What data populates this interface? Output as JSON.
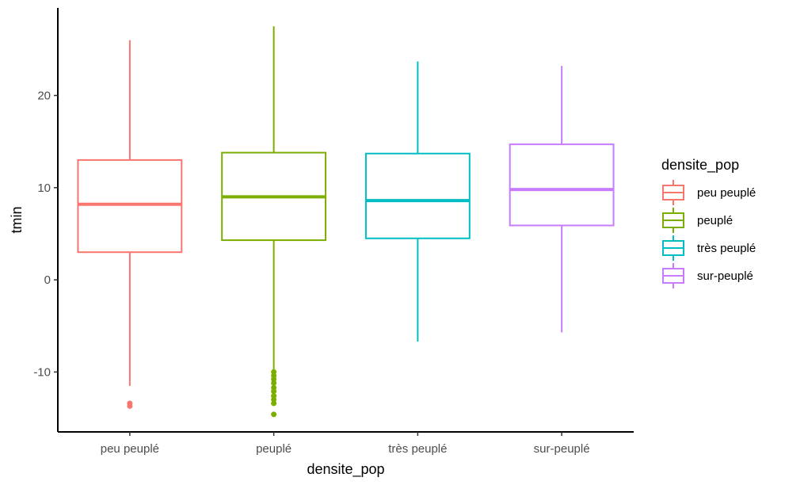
{
  "chart_data": {
    "type": "boxplot",
    "xlabel": "densite_pop",
    "ylabel": "tmin",
    "ylim": [
      -16.5,
      29.5
    ],
    "yticks": [
      -10,
      0,
      10,
      20
    ],
    "grid": false,
    "legend": {
      "title": "densite_pop",
      "position": "right"
    },
    "categories": [
      "peu peuplé",
      "peuplé",
      "très peuplé",
      "sur-peuplé"
    ],
    "series": [
      {
        "category": "peu peuplé",
        "color": "#F8766D",
        "whisker_low": -11.5,
        "q1": 3.0,
        "median": 8.2,
        "q3": 13.0,
        "whisker_high": 26.0,
        "outliers": [
          -13.4,
          -13.7
        ]
      },
      {
        "category": "peuplé",
        "color": "#7CAE00",
        "whisker_low": -9.8,
        "q1": 4.3,
        "median": 9.0,
        "q3": 13.8,
        "whisker_high": 27.5,
        "outliers": [
          -10.0,
          -10.4,
          -10.8,
          -11.2,
          -11.7,
          -12.1,
          -12.6,
          -13.0,
          -13.4,
          -14.6
        ]
      },
      {
        "category": "très peuplé",
        "color": "#00BFC4",
        "whisker_low": -6.7,
        "q1": 4.5,
        "median": 8.6,
        "q3": 13.7,
        "whisker_high": 23.7,
        "outliers": []
      },
      {
        "category": "sur-peuplé",
        "color": "#C77CFF",
        "whisker_low": -5.7,
        "q1": 5.9,
        "median": 9.8,
        "q3": 14.7,
        "whisker_high": 23.2,
        "outliers": []
      }
    ]
  }
}
